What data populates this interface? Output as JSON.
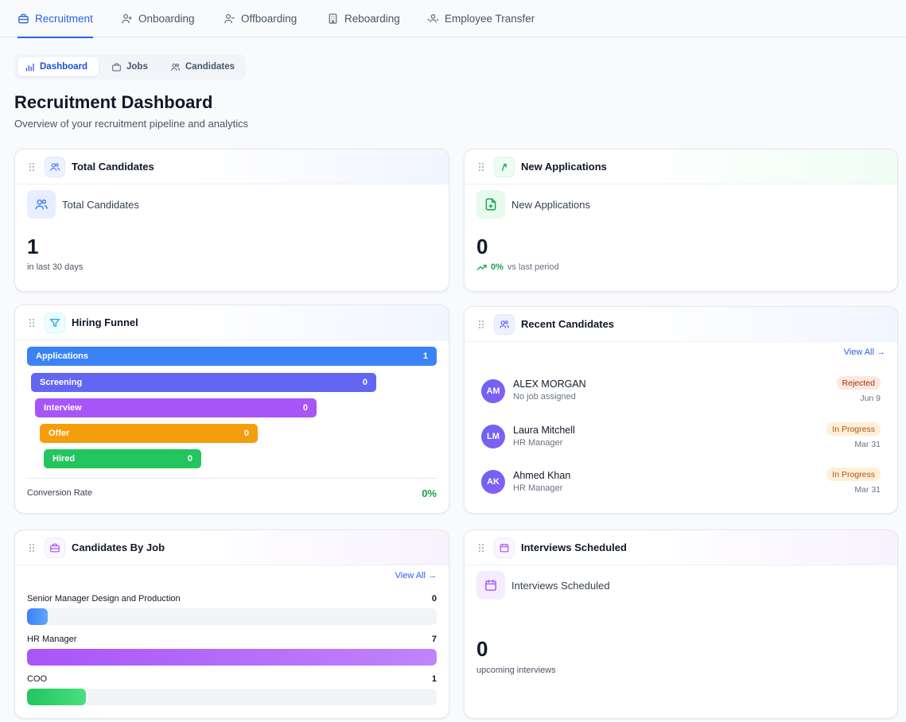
{
  "top_tabs": [
    {
      "label": "Recruitment",
      "icon": "briefcase-icon",
      "active": true
    },
    {
      "label": "Onboarding",
      "icon": "user-plus-icon",
      "active": false
    },
    {
      "label": "Offboarding",
      "icon": "user-minus-icon",
      "active": false
    },
    {
      "label": "Reboarding",
      "icon": "building-icon",
      "active": false
    },
    {
      "label": "Employee Transfer",
      "icon": "users-transfer-icon",
      "active": false
    }
  ],
  "sub_tabs": [
    {
      "label": "Dashboard",
      "icon": "bar-chart-icon",
      "active": true
    },
    {
      "label": "Jobs",
      "icon": "briefcase-icon",
      "active": false
    },
    {
      "label": "Candidates",
      "icon": "users-icon",
      "active": false
    }
  ],
  "page": {
    "title": "Recruitment Dashboard",
    "subtitle": "Overview of your recruitment pipeline and analytics"
  },
  "total_candidates": {
    "header": "Total Candidates",
    "label": "Total Candidates",
    "value": "1",
    "caption": "in last 30 days"
  },
  "new_applications": {
    "header": "New Applications",
    "label": "New Applications",
    "value": "0",
    "trend_percent": "0%",
    "trend_caption": "vs last period"
  },
  "hiring_funnel": {
    "header": "Hiring Funnel",
    "stages": [
      {
        "label": "Applications",
        "value": "1",
        "color": "#3b82f6"
      },
      {
        "label": "Screening",
        "value": "0",
        "color": "#6366f1"
      },
      {
        "label": "Interview",
        "value": "0",
        "color": "#a855f7"
      },
      {
        "label": "Offer",
        "value": "0",
        "color": "#f59e0b"
      },
      {
        "label": "Hired",
        "value": "0",
        "color": "#22c55e"
      }
    ],
    "conversion_label": "Conversion Rate",
    "conversion_value": "0%"
  },
  "recent_candidates": {
    "header": "Recent Candidates",
    "view_all": "View All →",
    "items": [
      {
        "initials": "AM",
        "name": "ALEX MORGAN",
        "job": "No job assigned",
        "status": "Rejected",
        "date": "Jun 9"
      },
      {
        "initials": "LM",
        "name": "Laura Mitchell",
        "job": "HR Manager",
        "status": "In Progress",
        "date": "Mar 31"
      },
      {
        "initials": "AK",
        "name": "Ahmed Khan",
        "job": "HR Manager",
        "status": "In Progress",
        "date": "Mar 31"
      }
    ]
  },
  "candidates_by_job": {
    "header": "Candidates By Job",
    "view_all": "View All →",
    "jobs": [
      {
        "label": "Senior Manager Design and Production",
        "count": "0",
        "fill": 0.05
      },
      {
        "label": "HR Manager",
        "count": "7",
        "fill": 1.0
      },
      {
        "label": "COO",
        "count": "1",
        "fill": 0.143
      }
    ]
  },
  "interviews": {
    "header": "Interviews Scheduled",
    "label": "Interviews Scheduled",
    "value": "0",
    "caption": "upcoming interviews"
  }
}
